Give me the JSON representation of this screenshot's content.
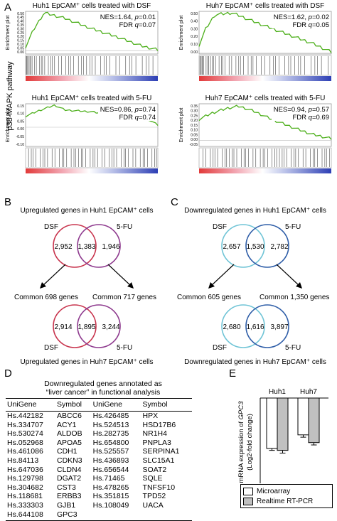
{
  "panel_labels": {
    "a": "A",
    "b": "B",
    "c": "C",
    "d": "D",
    "e": "E"
  },
  "panelA": {
    "side_label": "p38-MAPK pathway",
    "y_label": "Enrichment plot",
    "plots": [
      {
        "title": "Huh1 EpCAM⁺ cells treated with DSF",
        "nes": "NES=1.64, ",
        "p_lbl": "p",
        "p_val": "=0.01",
        "fdr_lbl": "FDR ",
        "q_lbl": "q",
        "q_val": "=0.07",
        "ticks": [
          "0.50",
          "0.45",
          "0.40",
          "0.35",
          "0.30",
          "0.25",
          "0.20",
          "0.15",
          "0.10",
          "0.05",
          "0.00"
        ]
      },
      {
        "title": "Huh7 EpCAM⁺ cells treated with DSF",
        "nes": "NES=1.62, ",
        "p_lbl": "p",
        "p_val": "=0.02",
        "fdr_lbl": "FDR ",
        "q_lbl": "q",
        "q_val": "=0.05",
        "ticks": [
          "0.50",
          "0.40",
          "0.30",
          "0.20",
          "0.10",
          "0.00"
        ]
      },
      {
        "title": "Huh1 EpCAM⁺ cells treated with 5-FU",
        "nes": "NES=0.86, ",
        "p_lbl": "p",
        "p_val": "=0.74",
        "fdr_lbl": "FDR ",
        "q_lbl": "q",
        "q_val": "=0.74",
        "ticks": [
          "0.15",
          "0.10",
          "0.05",
          "0.00",
          "-0.05",
          "-0.10"
        ]
      },
      {
        "title": "Huh7 EpCAM⁺ cells treated with 5-FU",
        "nes": "NES=0.94, ",
        "p_lbl": "p",
        "p_val": "=0.57",
        "fdr_lbl": "FDR ",
        "q_lbl": "q",
        "q_val": "=0.69",
        "ticks": [
          "0.35",
          "0.30",
          "0.25",
          "0.20",
          "0.15",
          "0.10",
          "0.05",
          "0.00",
          "-0.05"
        ]
      }
    ]
  },
  "panelB": {
    "top_title": "Upregulated genes in Huh1 EpCAM⁺ cells",
    "bottom_title": "Upregulated genes in Huh7 EpCAM⁺ cells",
    "left_label": "DSF",
    "right_label": "5-FU",
    "top": {
      "left": "2,952",
      "mid": "1,383",
      "right": "1,946"
    },
    "bottom": {
      "left": "2,914",
      "mid": "1,895",
      "right": "3,244"
    },
    "common_left": "Common 698 genes",
    "common_right": "Common 717 genes",
    "color_left": "#c8344d",
    "color_right": "#8e3a8e"
  },
  "panelC": {
    "top_title": "Downregulated genes in Huh1 EpCAM⁺ cells",
    "bottom_title": "Downregulated genes in Huh7 EpCAM⁺ cells",
    "left_label": "DSF",
    "right_label": "5-FU",
    "top": {
      "left": "2,657",
      "mid": "1,530",
      "right": "2,782"
    },
    "bottom": {
      "left": "2,680",
      "mid": "1,616",
      "right": "3,897"
    },
    "common_left": "Common 605 genes",
    "common_right": "Common 1,350 genes",
    "color_left": "#6fc4d6",
    "color_right": "#2f5ea8"
  },
  "panelD": {
    "title_line1": "Downregulated genes annotated as",
    "title_line2": "“liver cancer” in functional analysis",
    "headers": [
      "UniGene",
      "Symbol",
      "UniGene",
      "Symbol"
    ],
    "rows": [
      [
        "Hs.442182",
        "ABCC6",
        "Hs.426485",
        "HPX"
      ],
      [
        "Hs.334707",
        "ACY1",
        "Hs.524513",
        "HSD17B6"
      ],
      [
        "Hs.530274",
        "ALDOB",
        "Hs.282735",
        "NR1H4"
      ],
      [
        "Hs.052968",
        "APOA5",
        "Hs.654800",
        "PNPLA3"
      ],
      [
        "Hs.461086",
        "CDH1",
        "Hs.525557",
        "SERPINA1"
      ],
      [
        "Hs.84113",
        "CDKN3",
        "Hs.436893",
        "SLC15A1"
      ],
      [
        "Hs.647036",
        "CLDN4",
        "Hs.656544",
        "SOAT2"
      ],
      [
        "Hs.129798",
        "DGAT2",
        "Hs.71465",
        "SQLE"
      ],
      [
        "Hs.304682",
        "CST3",
        "Hs.478265",
        "TNFSF10"
      ],
      [
        "Hs.118681",
        "ERBB3",
        "Hs.351815",
        "TPD52"
      ],
      [
        "Hs.333303",
        "GJB1",
        "Hs.108049",
        "UACA"
      ],
      [
        "Hs.644108",
        "GPC3",
        "",
        ""
      ]
    ]
  },
  "chart_data": {
    "type": "bar",
    "categories": [
      "Huh1",
      "Huh7"
    ],
    "series": [
      {
        "name": "Microarray",
        "values": [
          -1.3,
          -0.95
        ],
        "errors": [
          0.05,
          0.06
        ],
        "color": "#ffffff"
      },
      {
        "name": "Realtime RT-PCR",
        "values": [
          -1.35,
          -1.15
        ],
        "errors": [
          0.07,
          0.06
        ],
        "color": "#c0c0c0"
      }
    ],
    "ylabel_line1": "mRNA expression of ",
    "ylabel_gene": "GPC3",
    "ylabel_line2": "(Log2-fold change)",
    "ylim": [
      -2.2,
      0
    ],
    "legend_position": "bottom-right"
  }
}
